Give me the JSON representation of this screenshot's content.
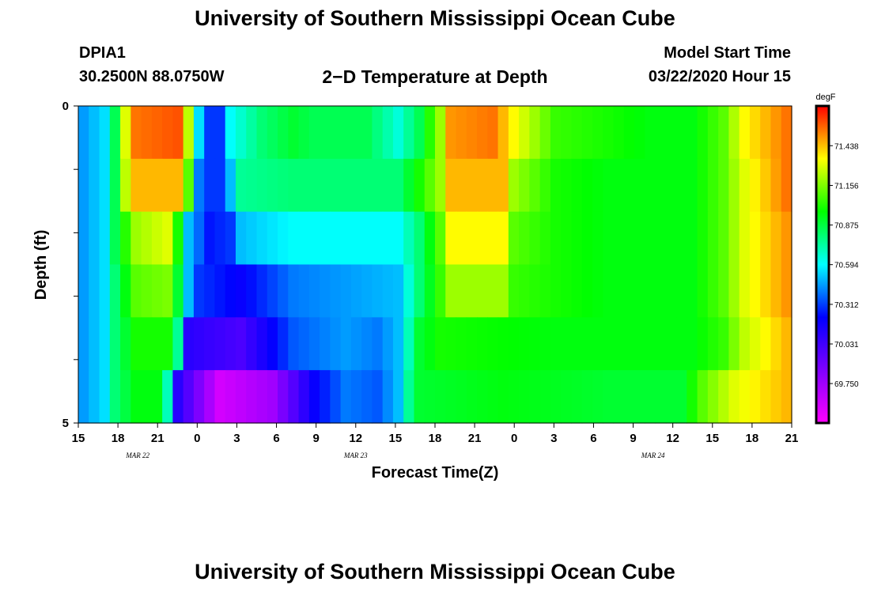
{
  "header": {
    "title": "University of Southern Mississippi Ocean Cube",
    "station": "DPIA1",
    "coords": "30.2500N 88.0750W",
    "subtitle": "2−D Temperature at Depth",
    "model_start_label": "Model Start Time",
    "model_start_value": "03/22/2020 Hour 15"
  },
  "footer": {
    "title": "University of Southern Mississippi Ocean Cube"
  },
  "chart_data": {
    "type": "heatmap",
    "title": "2−D Temperature at Depth",
    "xlabel": "Forecast Time(Z)",
    "ylabel": "Depth (ft)",
    "x_tick_labels": [
      "15",
      "18",
      "21",
      "0",
      "3",
      "6",
      "9",
      "12",
      "15",
      "18",
      "21",
      "0",
      "3",
      "6",
      "9",
      "12",
      "15",
      "18",
      "21"
    ],
    "date_labels": [
      {
        "label": "MAR 22",
        "at_tick": 1.5
      },
      {
        "label": "MAR 23",
        "at_tick": 7
      },
      {
        "label": "MAR 24",
        "at_tick": 14.5
      }
    ],
    "y_tick_labels": [
      "0",
      "5"
    ],
    "ylim": [
      0,
      5
    ],
    "colorbar": {
      "unit": "degF",
      "tick_values": [
        71.438,
        71.156,
        70.875,
        70.594,
        70.312,
        70.031,
        69.75
      ],
      "tick_labels": [
        "71.438",
        "71.156",
        "70.875",
        "70.594",
        "70.312",
        "70.031",
        "69.750"
      ],
      "range": [
        69.47,
        71.72
      ]
    },
    "grid": false,
    "layers": [
      {
        "depth": "0–1 ft",
        "anchors": [
          [
            0,
            70.45
          ],
          [
            2,
            70.55
          ],
          [
            3,
            70.85
          ],
          [
            4,
            71.3
          ],
          [
            5,
            71.55
          ],
          [
            9,
            71.6
          ],
          [
            10,
            71.25
          ],
          [
            11,
            70.55
          ],
          [
            12,
            70.3
          ],
          [
            13,
            70.3
          ],
          [
            14,
            70.6
          ],
          [
            17,
            70.8
          ],
          [
            20,
            70.9
          ],
          [
            22,
            70.85
          ],
          [
            27,
            70.85
          ],
          [
            30,
            70.65
          ],
          [
            32,
            70.85
          ],
          [
            34,
            71.2
          ],
          [
            35,
            71.5
          ],
          [
            39,
            71.55
          ],
          [
            41,
            71.35
          ],
          [
            45,
            71.05
          ],
          [
            50,
            71.0
          ],
          [
            54,
            70.95
          ],
          [
            58,
            70.95
          ],
          [
            61,
            71.1
          ],
          [
            63,
            71.35
          ],
          [
            67,
            71.55
          ]
        ]
      },
      {
        "depth": "1–2 ft",
        "anchors": [
          [
            0,
            70.45
          ],
          [
            2,
            70.55
          ],
          [
            3,
            70.85
          ],
          [
            4,
            71.25
          ],
          [
            5,
            71.45
          ],
          [
            9,
            71.45
          ],
          [
            10,
            71.1
          ],
          [
            11,
            70.4
          ],
          [
            12,
            70.3
          ],
          [
            13,
            70.3
          ],
          [
            14,
            70.5
          ],
          [
            15,
            70.75
          ],
          [
            20,
            70.8
          ],
          [
            25,
            70.8
          ],
          [
            30,
            70.8
          ],
          [
            32,
            71.0
          ],
          [
            34,
            71.2
          ],
          [
            35,
            71.45
          ],
          [
            40,
            71.45
          ],
          [
            41,
            71.2
          ],
          [
            45,
            71.0
          ],
          [
            50,
            70.95
          ],
          [
            54,
            70.95
          ],
          [
            58,
            70.95
          ],
          [
            61,
            71.1
          ],
          [
            63,
            71.3
          ],
          [
            67,
            71.55
          ]
        ]
      },
      {
        "depth": "2–3 ft",
        "anchors": [
          [
            0,
            70.45
          ],
          [
            2,
            70.55
          ],
          [
            3,
            70.85
          ],
          [
            5,
            71.2
          ],
          [
            8,
            71.3
          ],
          [
            9,
            71.0
          ],
          [
            10,
            70.5
          ],
          [
            12,
            70.25
          ],
          [
            14,
            70.3
          ],
          [
            15,
            70.5
          ],
          [
            20,
            70.6
          ],
          [
            25,
            70.6
          ],
          [
            30,
            70.6
          ],
          [
            32,
            70.8
          ],
          [
            34,
            71.1
          ],
          [
            35,
            71.35
          ],
          [
            40,
            71.35
          ],
          [
            41,
            71.1
          ],
          [
            45,
            71.0
          ],
          [
            50,
            70.95
          ],
          [
            54,
            70.95
          ],
          [
            58,
            70.95
          ],
          [
            61,
            71.1
          ],
          [
            63,
            71.3
          ],
          [
            67,
            71.5
          ]
        ]
      },
      {
        "depth": "3–4 ft",
        "anchors": [
          [
            0,
            70.45
          ],
          [
            2,
            70.55
          ],
          [
            3,
            70.8
          ],
          [
            5,
            71.1
          ],
          [
            8,
            71.15
          ],
          [
            9,
            70.9
          ],
          [
            10,
            70.5
          ],
          [
            11,
            70.3
          ],
          [
            15,
            70.2
          ],
          [
            20,
            70.4
          ],
          [
            25,
            70.45
          ],
          [
            30,
            70.5
          ],
          [
            32,
            70.8
          ],
          [
            34,
            71.05
          ],
          [
            35,
            71.2
          ],
          [
            40,
            71.2
          ],
          [
            41,
            71.05
          ],
          [
            45,
            71.0
          ],
          [
            50,
            70.95
          ],
          [
            54,
            70.95
          ],
          [
            58,
            70.95
          ],
          [
            61,
            71.1
          ],
          [
            63,
            71.3
          ],
          [
            67,
            71.5
          ]
        ]
      },
      {
        "depth": "4–5 ft",
        "anchors": [
          [
            0,
            70.45
          ],
          [
            2,
            70.55
          ],
          [
            3,
            70.8
          ],
          [
            5,
            71.0
          ],
          [
            8,
            71.0
          ],
          [
            9,
            70.75
          ],
          [
            10,
            70.1
          ],
          [
            15,
            70.0
          ],
          [
            20,
            70.35
          ],
          [
            25,
            70.45
          ],
          [
            28,
            70.4
          ],
          [
            30,
            70.5
          ],
          [
            31,
            70.7
          ],
          [
            32,
            70.9
          ],
          [
            34,
            71.0
          ],
          [
            45,
            70.95
          ],
          [
            50,
            70.95
          ],
          [
            54,
            70.95
          ],
          [
            58,
            70.95
          ],
          [
            61,
            71.05
          ],
          [
            63,
            71.25
          ],
          [
            67,
            71.45
          ]
        ]
      },
      {
        "depth": "5 ft",
        "anchors": [
          [
            0,
            70.45
          ],
          [
            2,
            70.55
          ],
          [
            3,
            70.8
          ],
          [
            5,
            70.95
          ],
          [
            7,
            70.95
          ],
          [
            8,
            70.7
          ],
          [
            9,
            70.1
          ],
          [
            13,
            69.6
          ],
          [
            18,
            69.75
          ],
          [
            22,
            70.2
          ],
          [
            25,
            70.4
          ],
          [
            28,
            70.35
          ],
          [
            30,
            70.5
          ],
          [
            31,
            70.75
          ],
          [
            32,
            70.9
          ],
          [
            40,
            70.95
          ],
          [
            50,
            70.9
          ],
          [
            57,
            70.9
          ],
          [
            59,
            71.1
          ],
          [
            62,
            71.3
          ],
          [
            67,
            71.45
          ]
        ]
      }
    ]
  }
}
